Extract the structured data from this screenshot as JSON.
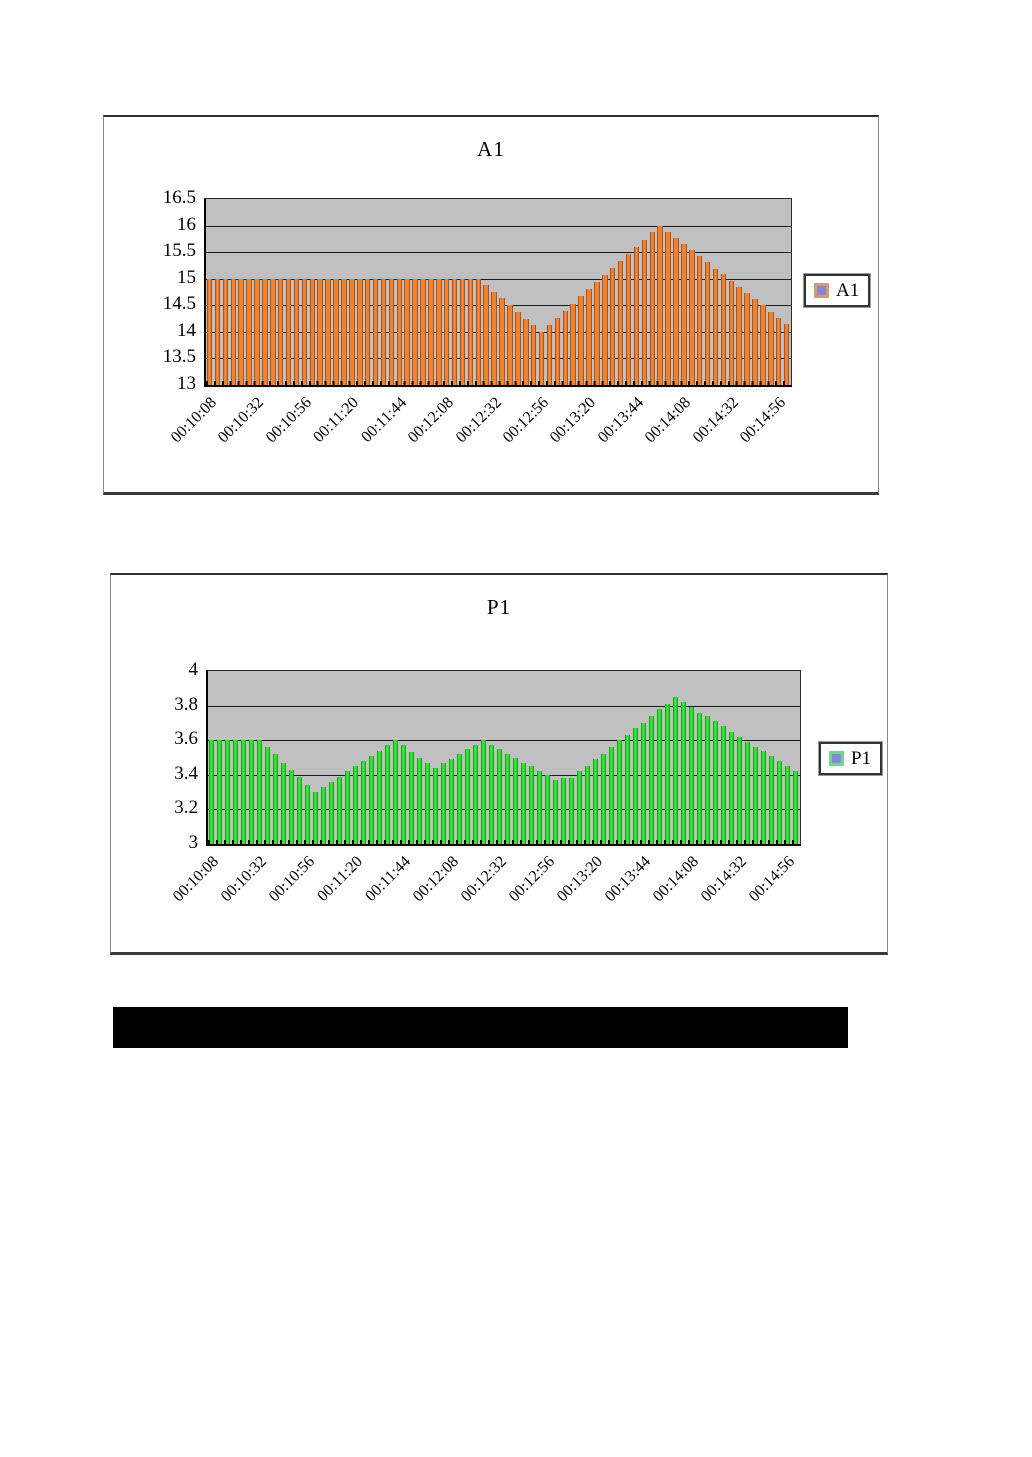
{
  "page": {
    "background": "#ffffff"
  },
  "redaction_bar": {
    "color": "#000000",
    "text": ""
  },
  "chart_data": [
    {
      "type": "bar",
      "title": "A1",
      "legend": {
        "label": "A1",
        "position": "right",
        "marker_outer": "#d89a66",
        "marker_inner": "#8585db"
      },
      "colors": {
        "bar_fill": "#ee8133",
        "bar_edge": "#ad5414",
        "plot_bg": "#c0c0c0",
        "gridline": "#1c1c1c"
      },
      "ylim": [
        13,
        16.5
      ],
      "grid": true,
      "y_tick_labels": [
        "16.5",
        "16",
        "15.5",
        "15",
        "14.5",
        "14",
        "13.5",
        "13"
      ],
      "x_tick_labels": [
        "00:10:08",
        "00:10:32",
        "00:10:56",
        "00:11:20",
        "00:11:44",
        "00:12:08",
        "00:12:32",
        "00:12:56",
        "00:13:20",
        "00:13:44",
        "00:14:08",
        "00:14:32",
        "00:14:56"
      ],
      "x_label_every": 6,
      "xlabel": "",
      "ylabel": "",
      "values": [
        15,
        15,
        15,
        15,
        15,
        15,
        15,
        15,
        15,
        15,
        15,
        15,
        15,
        15,
        15,
        15,
        15,
        15,
        15,
        15,
        15,
        15,
        15,
        15,
        15,
        15,
        15,
        15,
        15,
        15,
        15,
        15,
        15,
        15,
        15,
        14.88,
        14.75,
        14.63,
        14.5,
        14.38,
        14.25,
        14.13,
        14,
        14.13,
        14.27,
        14.4,
        14.53,
        14.67,
        14.8,
        14.93,
        15.07,
        15.2,
        15.33,
        15.47,
        15.6,
        15.73,
        15.87,
        16,
        15.88,
        15.77,
        15.65,
        15.54,
        15.42,
        15.31,
        15.19,
        15.08,
        14.96,
        14.85,
        14.73,
        14.61,
        14.5,
        14.38,
        14.27,
        14.15
      ]
    },
    {
      "type": "bar",
      "title": "P1",
      "legend": {
        "label": "P1",
        "position": "right",
        "marker_outer": "#74d494",
        "marker_inner": "#8585db"
      },
      "colors": {
        "bar_fill": "#35df35",
        "bar_edge": "#14a814",
        "plot_bg": "#c0c0c0",
        "gridline": "#1c1c1c"
      },
      "ylim": [
        3,
        4
      ],
      "grid": true,
      "y_tick_labels": [
        "4",
        "3.8",
        "3.6",
        "3.4",
        "3.2",
        "3"
      ],
      "x_tick_labels": [
        "00:10:08",
        "00:10:32",
        "00:10:56",
        "00:11:20",
        "00:11:44",
        "00:12:08",
        "00:12:32",
        "00:12:56",
        "00:13:20",
        "00:13:44",
        "00:14:08",
        "00:14:32",
        "00:14:56"
      ],
      "x_label_every": 6,
      "xlabel": "",
      "ylabel": "",
      "values": [
        3.6,
        3.6,
        3.6,
        3.6,
        3.6,
        3.6,
        3.6,
        3.56,
        3.52,
        3.47,
        3.43,
        3.39,
        3.34,
        3.3,
        3.33,
        3.36,
        3.39,
        3.42,
        3.45,
        3.48,
        3.51,
        3.54,
        3.57,
        3.6,
        3.57,
        3.53,
        3.5,
        3.47,
        3.44,
        3.47,
        3.49,
        3.52,
        3.55,
        3.57,
        3.6,
        3.57,
        3.55,
        3.52,
        3.5,
        3.47,
        3.45,
        3.42,
        3.4,
        3.37,
        3.38,
        3.38,
        3.42,
        3.45,
        3.49,
        3.52,
        3.56,
        3.6,
        3.63,
        3.67,
        3.7,
        3.74,
        3.78,
        3.81,
        3.85,
        3.82,
        3.79,
        3.76,
        3.74,
        3.71,
        3.68,
        3.65,
        3.62,
        3.59,
        3.56,
        3.54,
        3.51,
        3.48,
        3.45,
        3.42
      ]
    }
  ]
}
